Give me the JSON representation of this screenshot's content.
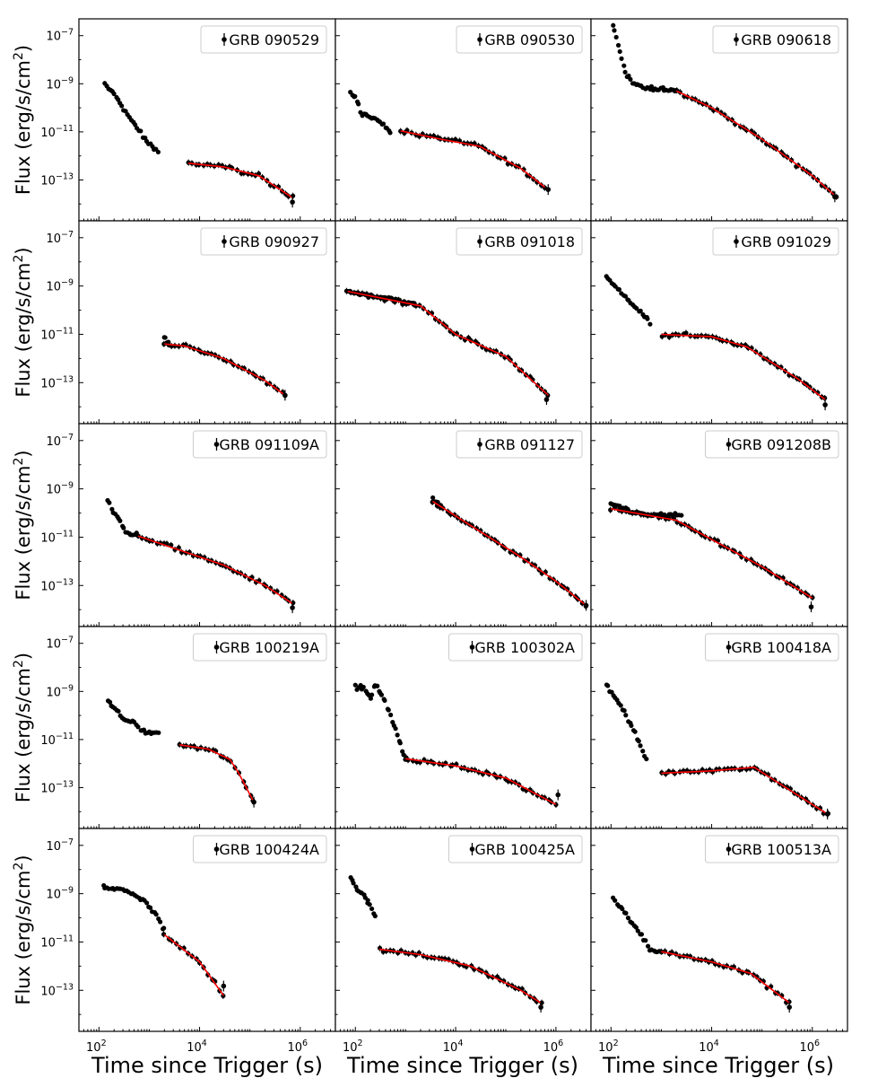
{
  "figure": {
    "ylabel": "Flux (erg/s/cm",
    "ylabel_sup": "2",
    "ylabel_close": ")",
    "xlabel": "Time since Trigger (s)"
  },
  "colors": {
    "points": "#000000",
    "fit": "#ff0000",
    "axes": "#000000",
    "legend_border": "#cccccc"
  },
  "chart_data": {
    "type": "scatter",
    "layout": "5x3 grid, shared log axes",
    "x_scale": "log",
    "y_scale": "log",
    "xlim": [
      40,
      5000000
    ],
    "ylim": [
      2e-15,
      5e-07
    ],
    "x_ticks": [
      {
        "base": "10",
        "exp": "2",
        "value": 100
      },
      {
        "base": "10",
        "exp": "4",
        "value": 10000
      },
      {
        "base": "10",
        "exp": "6",
        "value": 1000000
      }
    ],
    "y_ticks": [
      {
        "base": "10",
        "exp": "−7",
        "value": 1e-07
      },
      {
        "base": "10",
        "exp": "−9",
        "value": 1e-09
      },
      {
        "base": "10",
        "exp": "−11",
        "value": 1e-11
      },
      {
        "base": "10",
        "exp": "−13",
        "value": 1e-13
      }
    ],
    "xlabel": "Time since Trigger (s)",
    "ylabel": "Flux (erg/s/cm²)",
    "legend_position": "upper right",
    "panels": [
      {
        "name": "GRB 090529",
        "anchors": [
          [
            130,
            9e-10
          ],
          [
            200,
            4e-10
          ],
          [
            300,
            1e-10
          ],
          [
            500,
            2e-11
          ],
          [
            900,
            4e-12
          ],
          [
            1500,
            1.5e-12
          ]
        ],
        "fit": [
          [
            6000,
            5e-13
          ],
          [
            30000,
            3.5e-13
          ],
          [
            150000,
            1.5e-13
          ],
          [
            400000,
            4e-14
          ],
          [
            700000,
            1.8e-14
          ]
        ],
        "fit_err": [
          700000,
          1.2e-14
        ]
      },
      {
        "name": "GRB 090530",
        "anchors": [
          [
            80,
            5e-10
          ],
          [
            100,
            3e-10
          ],
          [
            130,
            6e-11
          ],
          [
            200,
            4e-11
          ],
          [
            300,
            3e-11
          ],
          [
            500,
            1e-11
          ]
        ],
        "fit": [
          [
            800,
            1.1e-11
          ],
          [
            5000,
            5e-12
          ],
          [
            30000,
            2.5e-12
          ],
          [
            200000,
            3e-13
          ],
          [
            600000,
            5e-14
          ]
        ],
        "fit_err": [
          700000,
          4e-14
        ]
      },
      {
        "name": "GRB 090618",
        "anchors": [
          [
            110,
            2.5e-07
          ],
          [
            130,
            8e-08
          ],
          [
            150,
            2e-08
          ],
          [
            180,
            5e-09
          ],
          [
            220,
            2e-09
          ],
          [
            300,
            1e-09
          ],
          [
            500,
            7e-10
          ],
          [
            1000,
            6e-10
          ],
          [
            2000,
            5e-10
          ]
        ],
        "fit": [
          [
            2000,
            5e-10
          ],
          [
            10000,
            1e-10
          ],
          [
            100000,
            5e-12
          ],
          [
            1000000,
            1.5e-13
          ],
          [
            3000000,
            2e-14
          ]
        ],
        "fit_err": [
          2800000,
          2e-14
        ]
      },
      {
        "name": "GRB 090927",
        "anchors": [
          [
            2000,
            7e-12
          ],
          [
            2500,
            4e-12
          ]
        ],
        "fit": [
          [
            2000,
            4e-12
          ],
          [
            5000,
            3.3e-12
          ],
          [
            30000,
            1e-12
          ],
          [
            200000,
            1.2e-13
          ],
          [
            500000,
            3e-14
          ]
        ],
        "fit_err": [
          500000,
          3e-14
        ]
      },
      {
        "name": "GRB 091018",
        "anchors": [
          [
            70,
            6e-10
          ],
          [
            200,
            4e-10
          ],
          [
            700,
            2.5e-10
          ],
          [
            1500,
            2e-10
          ]
        ],
        "fit": [
          [
            70,
            6e-10
          ],
          [
            2000,
            1.5e-10
          ],
          [
            10000,
            1e-11
          ],
          [
            100000,
            1.2e-12
          ],
          [
            700000,
            3e-14
          ]
        ],
        "fit_err": [
          650000,
          2e-14
        ]
      },
      {
        "name": "GRB 091029",
        "anchors": [
          [
            80,
            3e-09
          ],
          [
            120,
            1e-09
          ],
          [
            200,
            3e-10
          ],
          [
            350,
            1e-10
          ],
          [
            600,
            3e-11
          ]
        ],
        "fit": [
          [
            1000,
            1e-11
          ],
          [
            10000,
            8e-12
          ],
          [
            50000,
            3e-12
          ],
          [
            500000,
            1.5e-13
          ],
          [
            1800000,
            2e-14
          ]
        ],
        "fit_err": [
          1800000,
          1.2e-14
        ]
      },
      {
        "name": "GRB 091109A",
        "anchors": [
          [
            150,
            3e-10
          ],
          [
            200,
            1e-10
          ],
          [
            250,
            5e-11
          ],
          [
            350,
            1.5e-11
          ],
          [
            600,
            1.2e-11
          ]
        ],
        "fit": [
          [
            600,
            1.1e-11
          ],
          [
            5000,
            2.5e-12
          ],
          [
            30000,
            7e-13
          ],
          [
            200000,
            1e-13
          ],
          [
            700000,
            1.8e-14
          ]
        ],
        "fit_err": [
          700000,
          1.2e-14
        ]
      },
      {
        "name": "GRB 091127",
        "anchors": [
          [
            3500,
            4e-10
          ],
          [
            5000,
            2e-10
          ]
        ],
        "fit": [
          [
            3500,
            3e-10
          ],
          [
            20000,
            3e-11
          ],
          [
            200000,
            1.5e-12
          ],
          [
            1000000,
            1.5e-13
          ],
          [
            4000000,
            1.5e-14
          ]
        ],
        "fit_err": [
          4000000,
          1.5e-14
        ]
      },
      {
        "name": "GRB 091208B",
        "anchors": [
          [
            100,
            2.5e-10
          ],
          [
            300,
            1e-10
          ],
          [
            1000,
            8e-11
          ],
          [
            2500,
            8e-11
          ]
        ],
        "fit": [
          [
            100,
            1.5e-10
          ],
          [
            2000,
            5e-11
          ],
          [
            10000,
            8e-12
          ],
          [
            100000,
            6e-13
          ],
          [
            1000000,
            3e-14
          ]
        ],
        "fit_err": [
          950000,
          1.3e-14
        ]
      },
      {
        "name": "GRB 100219A",
        "anchors": [
          [
            150,
            4e-10
          ],
          [
            200,
            2e-10
          ],
          [
            300,
            7e-11
          ],
          [
            500,
            5e-11
          ],
          [
            700,
            2.5e-11
          ],
          [
            1000,
            2e-11
          ],
          [
            1500,
            2e-11
          ]
        ],
        "fit": [
          [
            4000,
            6e-12
          ],
          [
            15000,
            4e-12
          ],
          [
            40000,
            1.5e-12
          ],
          [
            60000,
            4e-13
          ],
          [
            120000,
            2.5e-14
          ]
        ],
        "fit_err": [
          120000,
          2.5e-14
        ]
      },
      {
        "name": "GRB 100302A",
        "anchors": [
          [
            100,
            1.5e-09
          ],
          [
            150,
            1.5e-09
          ],
          [
            200,
            5e-10
          ],
          [
            250,
            2e-09
          ],
          [
            300,
            1e-09
          ],
          [
            400,
            4e-10
          ],
          [
            500,
            1e-10
          ],
          [
            700,
            1.5e-11
          ],
          [
            1000,
            1.5e-12
          ]
        ],
        "fit": [
          [
            1000,
            1.6e-12
          ],
          [
            10000,
            8e-13
          ],
          [
            100000,
            2.5e-13
          ],
          [
            1000000,
            2e-14
          ]
        ],
        "fit_err": [
          1100000,
          5e-14
        ]
      },
      {
        "name": "GRB 100418A",
        "anchors": [
          [
            80,
            2e-09
          ],
          [
            150,
            3e-10
          ],
          [
            200,
            1e-10
          ],
          [
            300,
            2e-11
          ],
          [
            500,
            1.5e-12
          ]
        ],
        "fit": [
          [
            1000,
            4e-13
          ],
          [
            10000,
            5e-13
          ],
          [
            70000,
            7e-13
          ],
          [
            300000,
            1e-13
          ],
          [
            2000000,
            8e-15
          ]
        ],
        "fit_err": [
          2000000,
          8e-15
        ]
      },
      {
        "name": "GRB 100424A",
        "anchors": [
          [
            120,
            2e-09
          ],
          [
            300,
            1.5e-09
          ],
          [
            800,
            5e-10
          ],
          [
            1500,
            1e-10
          ],
          [
            2000,
            3e-11
          ]
        ],
        "fit": [
          [
            2000,
            2e-11
          ],
          [
            10000,
            1.5e-12
          ],
          [
            30000,
            6e-14
          ]
        ],
        "fit_err": [
          30000,
          1.5e-13
        ]
      },
      {
        "name": "GRB 100425A",
        "anchors": [
          [
            80,
            5e-09
          ],
          [
            100,
            2e-09
          ],
          [
            150,
            8e-10
          ],
          [
            200,
            3e-10
          ],
          [
            250,
            1e-10
          ]
        ],
        "fit": [
          [
            300,
            5e-12
          ],
          [
            2000,
            3e-12
          ],
          [
            20000,
            1e-12
          ],
          [
            200000,
            1e-13
          ],
          [
            500000,
            3e-14
          ]
        ],
        "fit_err": [
          500000,
          2e-14
        ]
      },
      {
        "name": "GRB 100513A",
        "anchors": [
          [
            110,
            7e-10
          ],
          [
            250,
            7e-11
          ],
          [
            400,
            2e-11
          ],
          [
            600,
            5e-12
          ],
          [
            1000,
            4e-12
          ]
        ],
        "fit": [
          [
            1000,
            4e-12
          ],
          [
            10000,
            1.5e-12
          ],
          [
            60000,
            5e-13
          ],
          [
            350000,
            3e-14
          ]
        ],
        "fit_err": [
          350000,
          2e-14
        ]
      }
    ]
  }
}
